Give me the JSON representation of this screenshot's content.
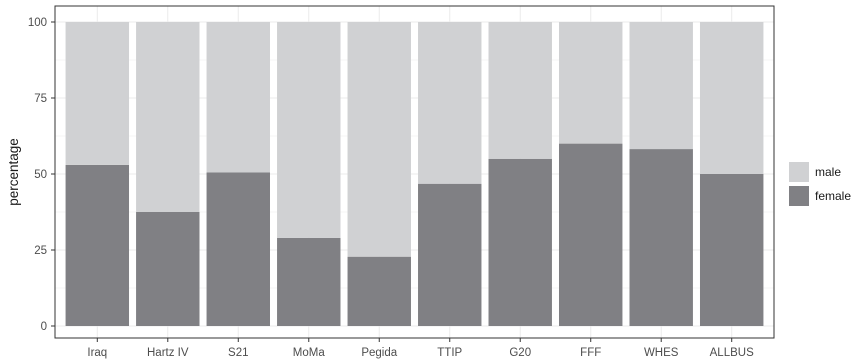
{
  "chart_data": {
    "type": "bar",
    "stacked": true,
    "percent_stacked": true,
    "categories": [
      "Iraq",
      "Hartz IV",
      "S21",
      "MoMa",
      "Pegida",
      "TTIP",
      "G20",
      "FFF",
      "WHES",
      "ALLBUS"
    ],
    "series": [
      {
        "name": "female",
        "values": [
          53,
          37.5,
          50.5,
          29,
          22.8,
          46.8,
          55,
          60,
          58.2,
          50
        ],
        "color": "#808084"
      },
      {
        "name": "male",
        "values": [
          47,
          62.5,
          49.5,
          71,
          77.2,
          53.2,
          45,
          40,
          41.8,
          50
        ],
        "color": "#d0d1d3"
      }
    ],
    "title": "",
    "xlabel": "",
    "ylabel": "percentage",
    "ylim": [
      0,
      100
    ],
    "yticks": [
      0,
      25,
      50,
      75,
      100
    ],
    "grid": true,
    "legend": {
      "position": "right",
      "entries": [
        "male",
        "female"
      ]
    }
  }
}
